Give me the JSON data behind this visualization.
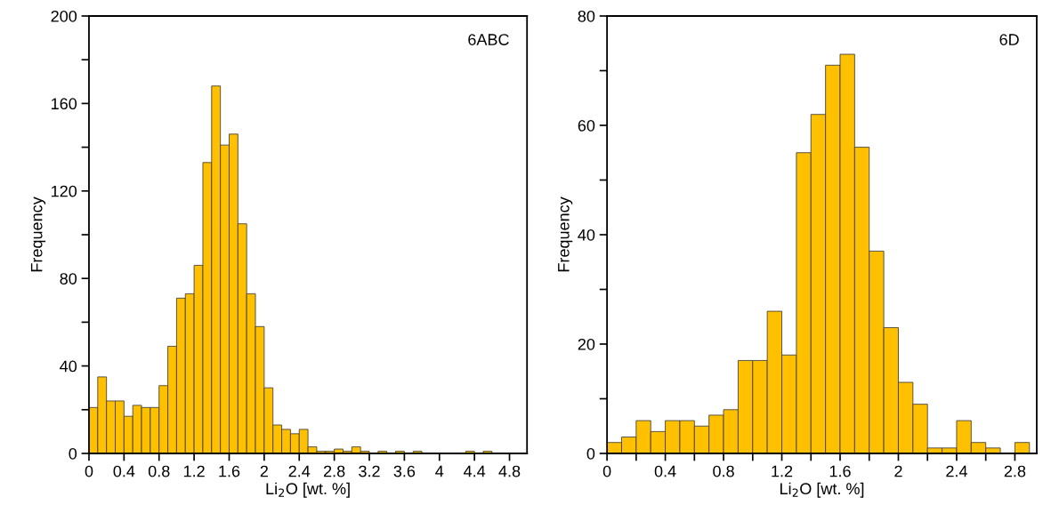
{
  "chart_data": [
    {
      "type": "histogram",
      "xlabel": "Li$_{2}$O [wt. %]",
      "ylabel": "Frequency",
      "annotations": [
        "6ABC"
      ],
      "color": "#ffc000",
      "bins": [
        0,
        0.1,
        0.2,
        0.3,
        0.4,
        0.5,
        0.6,
        0.7,
        0.8,
        0.9,
        1.0,
        1.1,
        1.2,
        1.3,
        1.4,
        1.5,
        1.6,
        1.7,
        1.8,
        1.9,
        2.0,
        2.1,
        2.2,
        2.3,
        2.4,
        2.5,
        2.6,
        2.7,
        2.8,
        2.9,
        3.0,
        3.1,
        3.2,
        3.3,
        3.4,
        3.5,
        3.6,
        3.7,
        3.8,
        3.9,
        4.0,
        4.1,
        4.2,
        4.3,
        4.4,
        4.5,
        4.6
      ],
      "values": [
        21,
        35,
        24,
        24,
        17,
        22,
        21,
        21,
        31,
        49,
        71,
        73,
        86,
        133,
        168,
        141,
        146,
        105,
        73,
        58,
        30,
        13,
        11,
        9,
        11,
        3,
        1,
        1,
        2,
        1,
        3,
        1,
        0,
        1,
        0,
        1,
        0,
        1,
        0,
        0,
        0,
        0,
        0,
        1,
        0,
        1
      ],
      "xlim": [
        0,
        5
      ],
      "xticks": [
        0,
        0.4,
        0.8,
        1.2,
        1.6,
        2,
        2.4,
        2.8,
        3.2,
        3.6,
        4,
        4.4,
        4.8
      ],
      "ylim": [
        0,
        200
      ],
      "yticks": [
        0,
        {
          "value": 20,
          "label": null
        },
        40,
        {
          "value": 60,
          "label": null
        },
        80,
        {
          "value": 100,
          "label": null
        },
        120,
        {
          "value": 140,
          "label": null
        },
        160,
        {
          "value": 180,
          "label": null
        },
        200
      ],
      "grid": false,
      "legend": false
    },
    {
      "type": "histogram",
      "xlabel": "Li$_{2}$O [wt. %]",
      "ylabel": "Frequency",
      "annotations": [
        "6D"
      ],
      "color": "#ffc000",
      "bins": [
        0,
        0.1,
        0.2,
        0.3,
        0.4,
        0.5,
        0.6,
        0.7,
        0.8,
        0.9,
        1.0,
        1.1,
        1.2,
        1.3,
        1.4,
        1.5,
        1.6,
        1.7,
        1.8,
        1.9,
        2.0,
        2.1,
        2.2,
        2.3,
        2.4,
        2.5,
        2.6,
        2.7,
        2.8,
        2.9
      ],
      "values": [
        2,
        3,
        6,
        4,
        6,
        6,
        5,
        7,
        8,
        17,
        17,
        26,
        18,
        55,
        62,
        71,
        73,
        56,
        37,
        23,
        13,
        9,
        1,
        1,
        6,
        2,
        1,
        0,
        2
      ],
      "xlim": [
        0,
        2.95
      ],
      "xticks": [
        0,
        {
          "value": 0.2,
          "label": null
        },
        0.4,
        {
          "value": 0.6,
          "label": null
        },
        0.8,
        {
          "value": 1.0,
          "label": null
        },
        1.2,
        {
          "value": 1.4,
          "label": null
        },
        1.6,
        {
          "value": 1.8,
          "label": null
        },
        2,
        {
          "value": 2.2,
          "label": null
        },
        2.4,
        {
          "value": 2.6,
          "label": null
        },
        2.8
      ],
      "ylim": [
        0,
        80
      ],
      "yticks": [
        0,
        {
          "value": 10,
          "label": null
        },
        20,
        {
          "value": 30,
          "label": null
        },
        40,
        {
          "value": 50,
          "label": null
        },
        60,
        {
          "value": 70,
          "label": null
        },
        80
      ],
      "grid": false,
      "legend": false
    }
  ]
}
